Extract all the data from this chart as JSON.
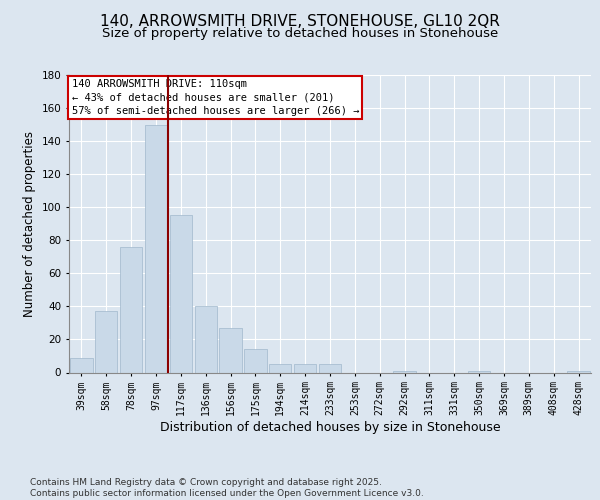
{
  "title1": "140, ARROWSMITH DRIVE, STONEHOUSE, GL10 2QR",
  "title2": "Size of property relative to detached houses in Stonehouse",
  "xlabel": "Distribution of detached houses by size in Stonehouse",
  "ylabel": "Number of detached properties",
  "bar_labels": [
    "39sqm",
    "58sqm",
    "78sqm",
    "97sqm",
    "117sqm",
    "136sqm",
    "156sqm",
    "175sqm",
    "194sqm",
    "214sqm",
    "233sqm",
    "253sqm",
    "272sqm",
    "292sqm",
    "311sqm",
    "331sqm",
    "350sqm",
    "369sqm",
    "389sqm",
    "408sqm",
    "428sqm"
  ],
  "bar_values": [
    9,
    37,
    76,
    150,
    95,
    40,
    27,
    14,
    5,
    5,
    5,
    0,
    0,
    1,
    0,
    0,
    1,
    0,
    0,
    0,
    1
  ],
  "bar_color": "#c9d9e8",
  "bar_edgecolor": "#a0b8cc",
  "vline_x": 3.5,
  "vline_color": "#8b0000",
  "annotation_text": "140 ARROWSMITH DRIVE: 110sqm\n← 43% of detached houses are smaller (201)\n57% of semi-detached houses are larger (266) →",
  "annotation_box_facecolor": "#ffffff",
  "annotation_box_edgecolor": "#cc0000",
  "background_color": "#dce6f0",
  "plot_background": "#dce6f0",
  "ylim": [
    0,
    180
  ],
  "yticks": [
    0,
    20,
    40,
    60,
    80,
    100,
    120,
    140,
    160,
    180
  ],
  "footer": "Contains HM Land Registry data © Crown copyright and database right 2025.\nContains public sector information licensed under the Open Government Licence v3.0.",
  "title1_fontsize": 11,
  "title2_fontsize": 9.5,
  "xlabel_fontsize": 9,
  "ylabel_fontsize": 8.5,
  "annotation_fontsize": 7.5,
  "footer_fontsize": 6.5,
  "tick_fontsize": 7
}
